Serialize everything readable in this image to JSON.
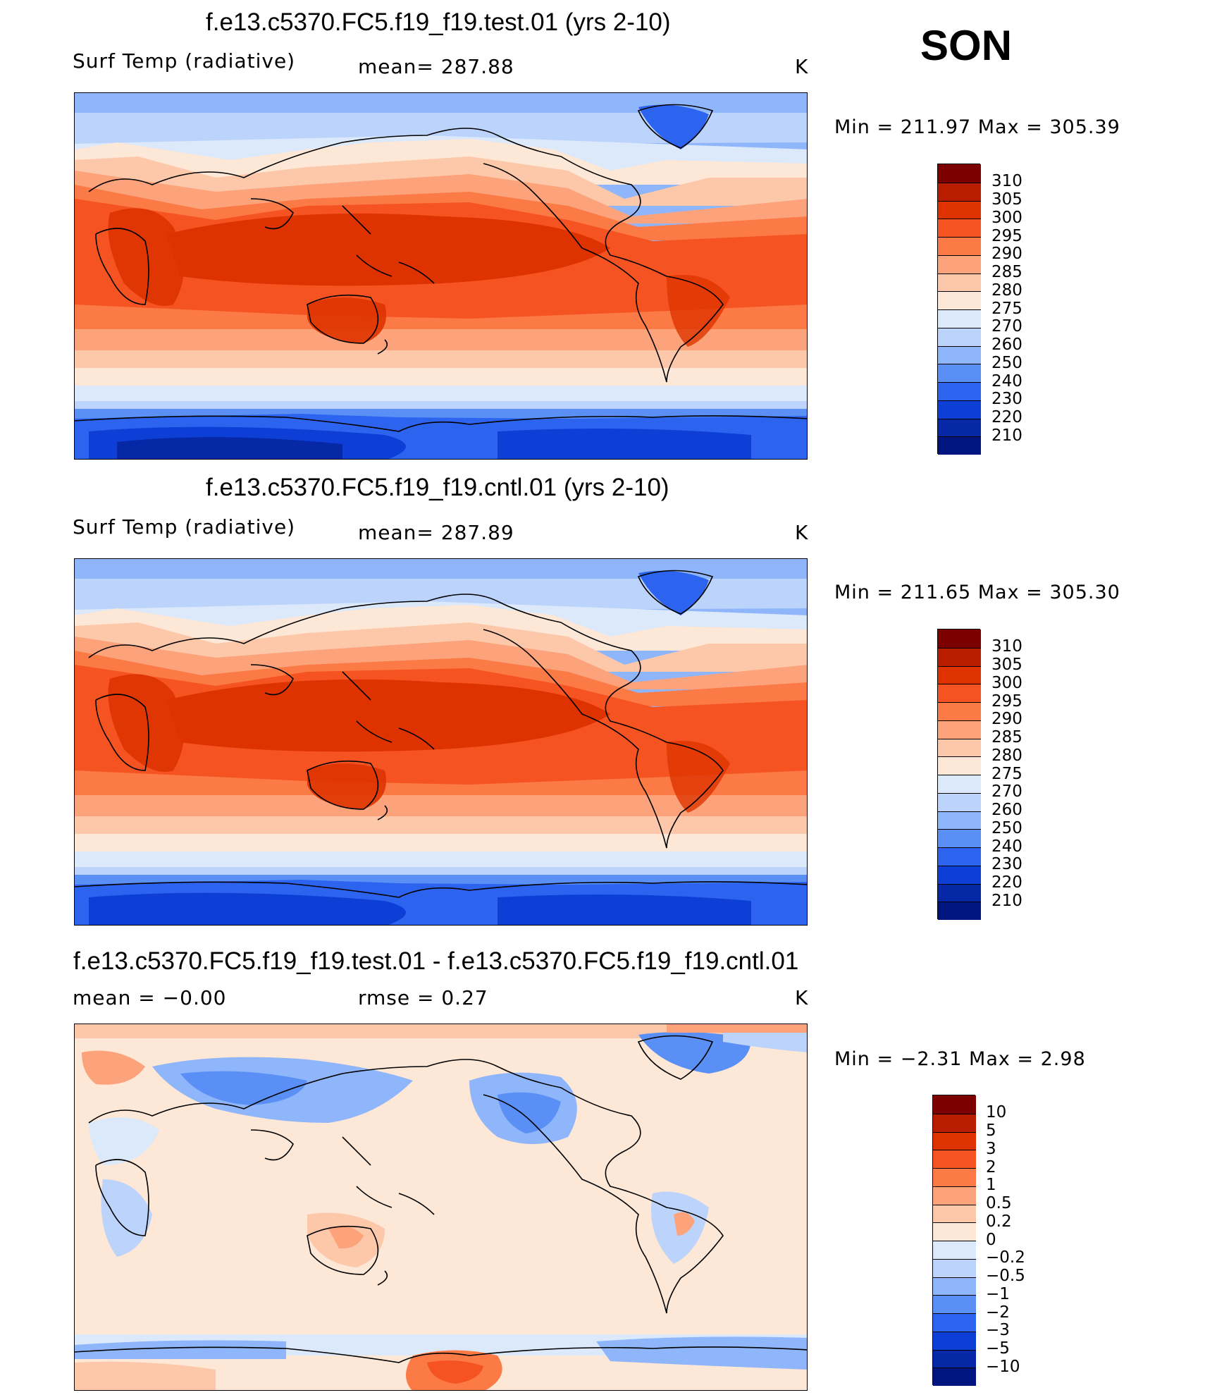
{
  "season": "SON",
  "panels": [
    {
      "title": "f.e13.c5370.FC5.f19_f19.test.01 (yrs 2-10)",
      "variable": "Surf Temp (radiative)",
      "stat": "mean=  287.88",
      "units": "K",
      "minmax": "Min  =  211.97  Max  =  305.39",
      "levels": [
        "310",
        "305",
        "300",
        "295",
        "290",
        "285",
        "280",
        "275",
        "270",
        "260",
        "250",
        "240",
        "230",
        "220",
        "210"
      ]
    },
    {
      "title": "f.e13.c5370.FC5.f19_f19.cntl.01 (yrs 2-10)",
      "variable": "Surf Temp (radiative)",
      "stat": "mean=  287.89",
      "units": "K",
      "minmax": "Min  =  211.65  Max  =  305.30",
      "levels": [
        "310",
        "305",
        "300",
        "295",
        "290",
        "285",
        "280",
        "275",
        "270",
        "260",
        "250",
        "240",
        "230",
        "220",
        "210"
      ]
    },
    {
      "title": "f.e13.c5370.FC5.f19_f19.test.01 - f.e13.c5370.FC5.f19_f19.cntl.01",
      "variable": "mean  =    −0.00",
      "stat": "rmse  =      0.27",
      "units": "K",
      "minmax": "Min  =      −2.31  Max  =        2.98",
      "levels": [
        "10",
        "5",
        "3",
        "2",
        "1",
        "0.5",
        "0.2",
        "0",
        "−0.2",
        "−0.5",
        "−1",
        "−2",
        "−3",
        "−5",
        "−10"
      ]
    }
  ],
  "colors": {
    "abs_scale": [
      "#7d0000",
      "#b81d00",
      "#de3300",
      "#f55422",
      "#fb7a45",
      "#fca37c",
      "#fdc8aa",
      "#fde7d6",
      "#dbe9fb",
      "#bcd4fb",
      "#8fb6fa",
      "#5a8ff5",
      "#2c64ef",
      "#0d3fd6",
      "#0627a6",
      "#001580"
    ],
    "diff_scale": [
      "#7d0000",
      "#b81d00",
      "#de3300",
      "#f55422",
      "#fb7a45",
      "#fca37c",
      "#fdc8aa",
      "#fde7d6",
      "#dbe9fb",
      "#bcd4fb",
      "#8fb6fa",
      "#5a8ff5",
      "#2c64ef",
      "#0d3fd6",
      "#0627a6",
      "#001580"
    ]
  }
}
